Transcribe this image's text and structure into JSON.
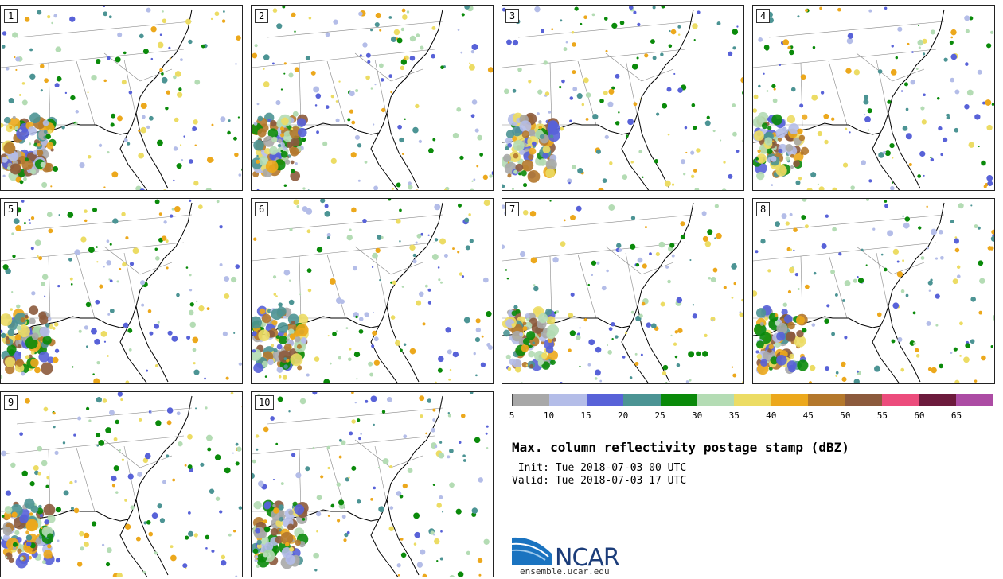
{
  "panels": [
    {
      "label": "1"
    },
    {
      "label": "2"
    },
    {
      "label": "3"
    },
    {
      "label": "4"
    },
    {
      "label": "5"
    },
    {
      "label": "6"
    },
    {
      "label": "7"
    },
    {
      "label": "8"
    },
    {
      "label": "9"
    },
    {
      "label": "10"
    }
  ],
  "colorbar": {
    "colors": [
      "#a8a8a8",
      "#b4bde8",
      "#5862d8",
      "#4c9494",
      "#0a8a0a",
      "#b4dcb4",
      "#ecdc64",
      "#eca81c",
      "#b4782c",
      "#8c5a3c",
      "#ec4c7c",
      "#6c1a3c",
      "#ac4ca4"
    ],
    "ticks": [
      "5",
      "10",
      "15",
      "20",
      "25",
      "30",
      "35",
      "40",
      "45",
      "50",
      "55",
      "60",
      "65"
    ]
  },
  "title": "Max. column reflectivity postage stamp (dBZ)",
  "init": " Init: Tue 2018-07-03 00 UTC",
  "valid": "Valid: Tue 2018-07-03 17 UTC",
  "logo": {
    "text": "NCAR",
    "site": "ensemble.ucar.edu"
  }
}
